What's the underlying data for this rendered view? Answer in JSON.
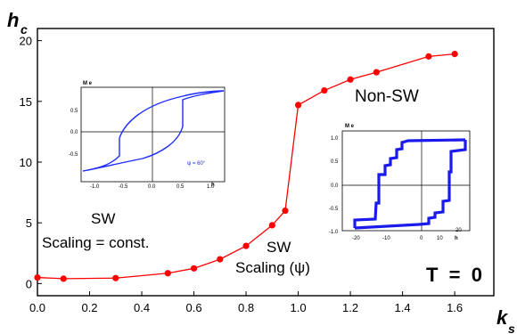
{
  "chart_data": [
    {
      "type": "line",
      "series": [
        {
          "x": [
            0.0,
            0.1,
            0.3,
            0.5,
            0.6,
            0.7,
            0.8,
            0.9,
            0.95,
            1.0,
            1.1,
            1.2,
            1.3,
            1.5,
            1.6
          ],
          "values": [
            0.5,
            0.4,
            0.45,
            0.85,
            1.25,
            2.0,
            3.1,
            4.8,
            6.0,
            14.7,
            15.9,
            16.8,
            17.4,
            18.7,
            18.9
          ],
          "color": "#ff0000"
        }
      ],
      "xlabel_main": "k",
      "xlabel_sub": "s",
      "ylabel_main": "h",
      "ylabel_sub": "c",
      "xlim": [
        0.0,
        1.75
      ],
      "ylim": [
        -1,
        21
      ],
      "xticks": [
        "0.0",
        "0.2",
        "0.4",
        "0.6",
        "0.8",
        "1.0",
        "1.2",
        "1.4",
        "1.6"
      ],
      "yticks": [
        "0",
        "5",
        "10",
        "15",
        "20"
      ],
      "annotations": {
        "sw1_line1": "SW",
        "sw1_line2": "Scaling = const.",
        "sw2_line1": "SW",
        "sw2_line2": "Scaling (ψ)",
        "nonsw": "Non-SW",
        "temp": "T  =  0"
      }
    },
    {
      "type": "line",
      "inset": "left",
      "ylabel": "M e",
      "xlabel": "h",
      "xticks": [
        "-1.0",
        "-0.5",
        "0.0",
        "0.5",
        "1.0"
      ],
      "yticks": [
        "-0.5",
        "0.0",
        "0.5"
      ],
      "legend": "ψ = 60°",
      "color": "#1e2cff"
    },
    {
      "type": "line",
      "inset": "right",
      "ylabel": "M e",
      "xlabel": "h",
      "xticks": [
        "-20",
        "-10",
        "0",
        "10",
        "20"
      ],
      "yticks": [
        "-1.0",
        "-0.5",
        "0.0",
        "0.5",
        "1.0"
      ],
      "color": "#1a1aee"
    }
  ]
}
